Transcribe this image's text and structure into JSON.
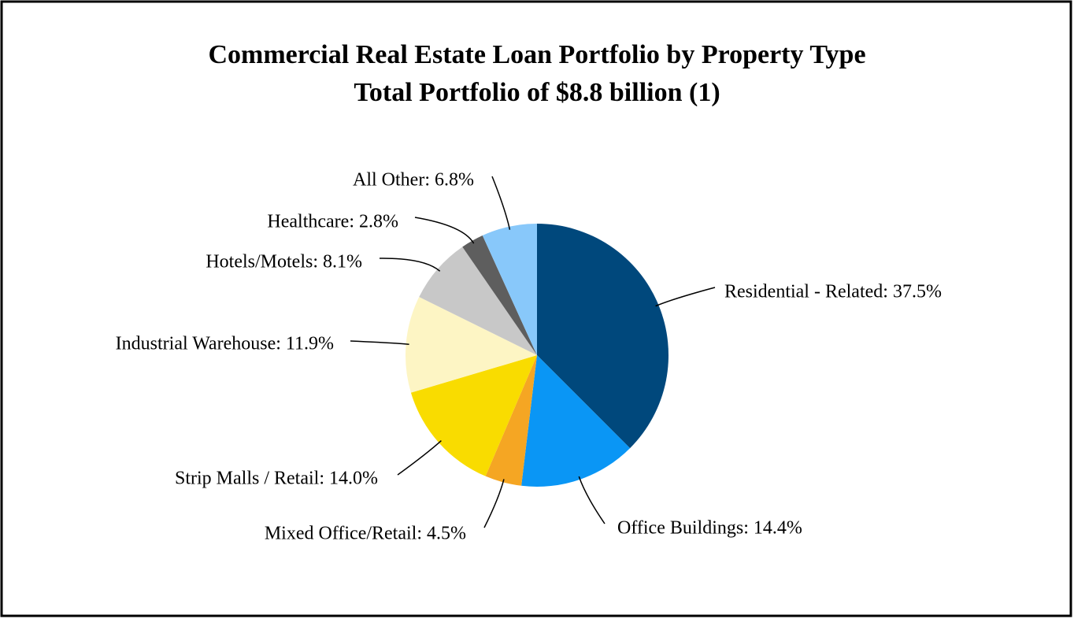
{
  "chart_data": {
    "type": "pie",
    "title": "Commercial Real Estate Loan Portfolio by Property Type",
    "subtitle": "Total Portfolio of $8.8 billion (1)",
    "values": [
      37.5,
      14.4,
      4.5,
      14.0,
      11.9,
      8.1,
      2.8,
      6.8
    ],
    "value_labels": [
      "Residential - Related: 37.5%",
      "Office Buildings: 14.4%",
      "Mixed Office/Retail: 4.5%",
      "Strip Malls / Retail: 14.0%",
      "Industrial Warehouse: 11.9%",
      "Hotels/Motels: 8.1%",
      "Healthcare: 2.8%",
      "All Other: 6.8%"
    ],
    "colors": [
      "#00487c",
      "#0a96f5",
      "#f5a623",
      "#f9dc00",
      "#fdf5c4",
      "#c8c8c8",
      "#5e5e5e",
      "#88c8fa"
    ]
  }
}
